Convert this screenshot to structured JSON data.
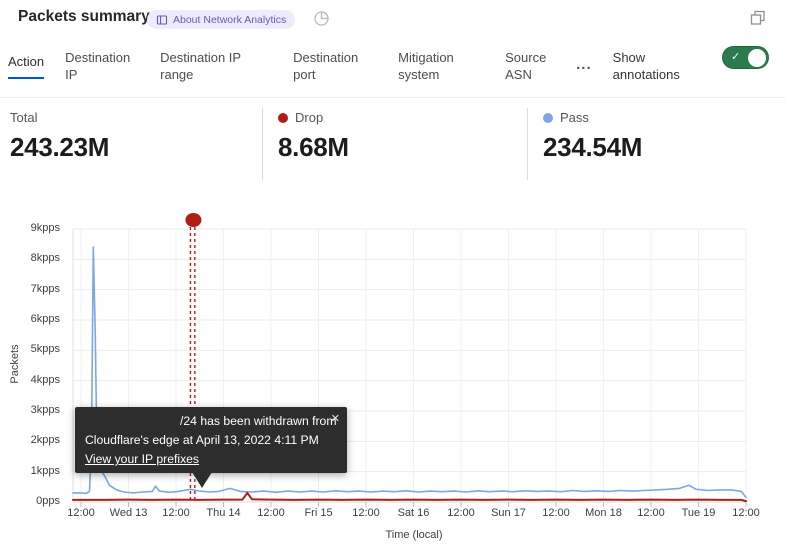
{
  "header": {
    "title": "Packets summary",
    "badge_label": "About Network Analytics"
  },
  "tabs": {
    "items": [
      {
        "label": "Action",
        "active": true
      },
      {
        "label": "Destination IP",
        "active": false
      },
      {
        "label": "Destination IP range",
        "active": false
      },
      {
        "label": "Destination port",
        "active": false
      },
      {
        "label": "Mitigation system",
        "active": false
      },
      {
        "label": "Source ASN",
        "active": false
      }
    ],
    "more_label": "...",
    "show_annotations_label": "Show annotations",
    "annotations_toggle_on": true,
    "toggle_check": "✓"
  },
  "stats": [
    {
      "label": "Total",
      "value": "243.23M",
      "dot_color": null
    },
    {
      "label": "Drop",
      "value": "8.68M",
      "dot_color": "#b01e15"
    },
    {
      "label": "Pass",
      "value": "234.54M",
      "dot_color": "#7ea6e2"
    }
  ],
  "chart_data": {
    "type": "line",
    "title": "",
    "xlabel": "Time (local)",
    "ylabel": "Packets",
    "x_tick_labels": [
      "12:00",
      "Wed 13",
      "12:00",
      "Thu 14",
      "12:00",
      "Fri 15",
      "12:00",
      "Sat 16",
      "12:00",
      "Sun 17",
      "12:00",
      "Mon 18",
      "12:00",
      "Tue 19",
      "12:00"
    ],
    "y_tick_labels": [
      "0pps",
      "1kpps",
      "2kpps",
      "3kpps",
      "4kpps",
      "5kpps",
      "6kpps",
      "7kpps",
      "8kpps",
      "9kpps"
    ],
    "xlim": [
      0,
      14
    ],
    "ylim": [
      0,
      9
    ],
    "grid": true,
    "legend_position": "none",
    "x_units": "ticks every 12 hours, Apr 12 12:00 through Apr 19 12:00 (kpps on y-axis)",
    "series": [
      {
        "name": "Pass",
        "color": "#7ea6e2",
        "points": [
          [
            -0.17,
            0.3
          ],
          [
            0.0,
            0.3
          ],
          [
            0.1,
            0.28
          ],
          [
            0.18,
            0.35
          ],
          [
            0.22,
            2.0
          ],
          [
            0.26,
            8.4
          ],
          [
            0.3,
            5.5
          ],
          [
            0.33,
            2.2
          ],
          [
            0.4,
            1.1
          ],
          [
            0.5,
            0.85
          ],
          [
            0.6,
            0.55
          ],
          [
            0.75,
            0.4
          ],
          [
            0.9,
            0.33
          ],
          [
            1.1,
            0.3
          ],
          [
            1.3,
            0.33
          ],
          [
            1.5,
            0.35
          ],
          [
            1.57,
            0.52
          ],
          [
            1.65,
            0.36
          ],
          [
            1.85,
            0.32
          ],
          [
            2.05,
            0.35
          ],
          [
            2.3,
            0.42
          ],
          [
            2.5,
            0.36
          ],
          [
            2.7,
            0.33
          ],
          [
            2.9,
            0.35
          ],
          [
            3.14,
            0.45
          ],
          [
            3.35,
            0.35
          ],
          [
            3.6,
            0.33
          ],
          [
            3.85,
            0.36
          ],
          [
            4.1,
            0.32
          ],
          [
            4.35,
            0.36
          ],
          [
            4.6,
            0.33
          ],
          [
            4.85,
            0.36
          ],
          [
            5.1,
            0.33
          ],
          [
            5.35,
            0.37
          ],
          [
            5.6,
            0.34
          ],
          [
            5.85,
            0.36
          ],
          [
            6.1,
            0.33
          ],
          [
            6.35,
            0.36
          ],
          [
            6.6,
            0.34
          ],
          [
            6.85,
            0.37
          ],
          [
            7.1,
            0.33
          ],
          [
            7.35,
            0.36
          ],
          [
            7.6,
            0.34
          ],
          [
            7.85,
            0.36
          ],
          [
            8.1,
            0.33
          ],
          [
            8.35,
            0.37
          ],
          [
            8.6,
            0.34
          ],
          [
            8.85,
            0.36
          ],
          [
            9.1,
            0.34
          ],
          [
            9.35,
            0.37
          ],
          [
            9.6,
            0.35
          ],
          [
            9.85,
            0.36
          ],
          [
            10.1,
            0.34
          ],
          [
            10.35,
            0.38
          ],
          [
            10.6,
            0.35
          ],
          [
            10.85,
            0.37
          ],
          [
            11.1,
            0.35
          ],
          [
            11.35,
            0.38
          ],
          [
            11.6,
            0.36
          ],
          [
            11.85,
            0.38
          ],
          [
            12.1,
            0.4
          ],
          [
            12.35,
            0.42
          ],
          [
            12.6,
            0.45
          ],
          [
            12.8,
            0.55
          ],
          [
            12.95,
            0.42
          ],
          [
            13.2,
            0.38
          ],
          [
            13.45,
            0.4
          ],
          [
            13.7,
            0.4
          ],
          [
            13.9,
            0.35
          ],
          [
            14.0,
            0.15
          ]
        ]
      },
      {
        "name": "Drop",
        "color": "#a8231b",
        "points": [
          [
            -0.17,
            0.07
          ],
          [
            0.5,
            0.07
          ],
          [
            1.0,
            0.08
          ],
          [
            1.5,
            0.07
          ],
          [
            2.0,
            0.08
          ],
          [
            2.5,
            0.07
          ],
          [
            3.0,
            0.08
          ],
          [
            3.4,
            0.08
          ],
          [
            3.5,
            0.3
          ],
          [
            3.6,
            0.09
          ],
          [
            4.0,
            0.08
          ],
          [
            4.5,
            0.07
          ],
          [
            5.0,
            0.08
          ],
          [
            5.5,
            0.07
          ],
          [
            6.0,
            0.08
          ],
          [
            6.5,
            0.07
          ],
          [
            7.0,
            0.08
          ],
          [
            7.5,
            0.07
          ],
          [
            8.0,
            0.08
          ],
          [
            8.5,
            0.07
          ],
          [
            9.0,
            0.08
          ],
          [
            9.5,
            0.07
          ],
          [
            10.0,
            0.08
          ],
          [
            10.5,
            0.07
          ],
          [
            11.0,
            0.08
          ],
          [
            11.5,
            0.07
          ],
          [
            12.0,
            0.08
          ],
          [
            12.5,
            0.07
          ],
          [
            13.0,
            0.08
          ],
          [
            13.5,
            0.07
          ],
          [
            13.9,
            0.07
          ],
          [
            14.0,
            0.03
          ]
        ]
      }
    ],
    "annotation": {
      "x_unit": 2.35,
      "marker_color": "#b01e15",
      "tooltip": {
        "line1": "/24 has been withdrawn from",
        "line2": "Cloudflare's edge at April 13, 2022 4:11 PM",
        "link": "View your IP prefixes",
        "close": "✕"
      }
    }
  },
  "colors": {
    "accent_blue": "#0055dc",
    "toggle_green": "#2c7b4f",
    "drop_red": "#b01e15",
    "pass_blue": "#7ea6e2",
    "badge_bg": "#edebfc",
    "badge_fg": "#6358c9",
    "tooltip_bg": "#2d2d2d"
  }
}
